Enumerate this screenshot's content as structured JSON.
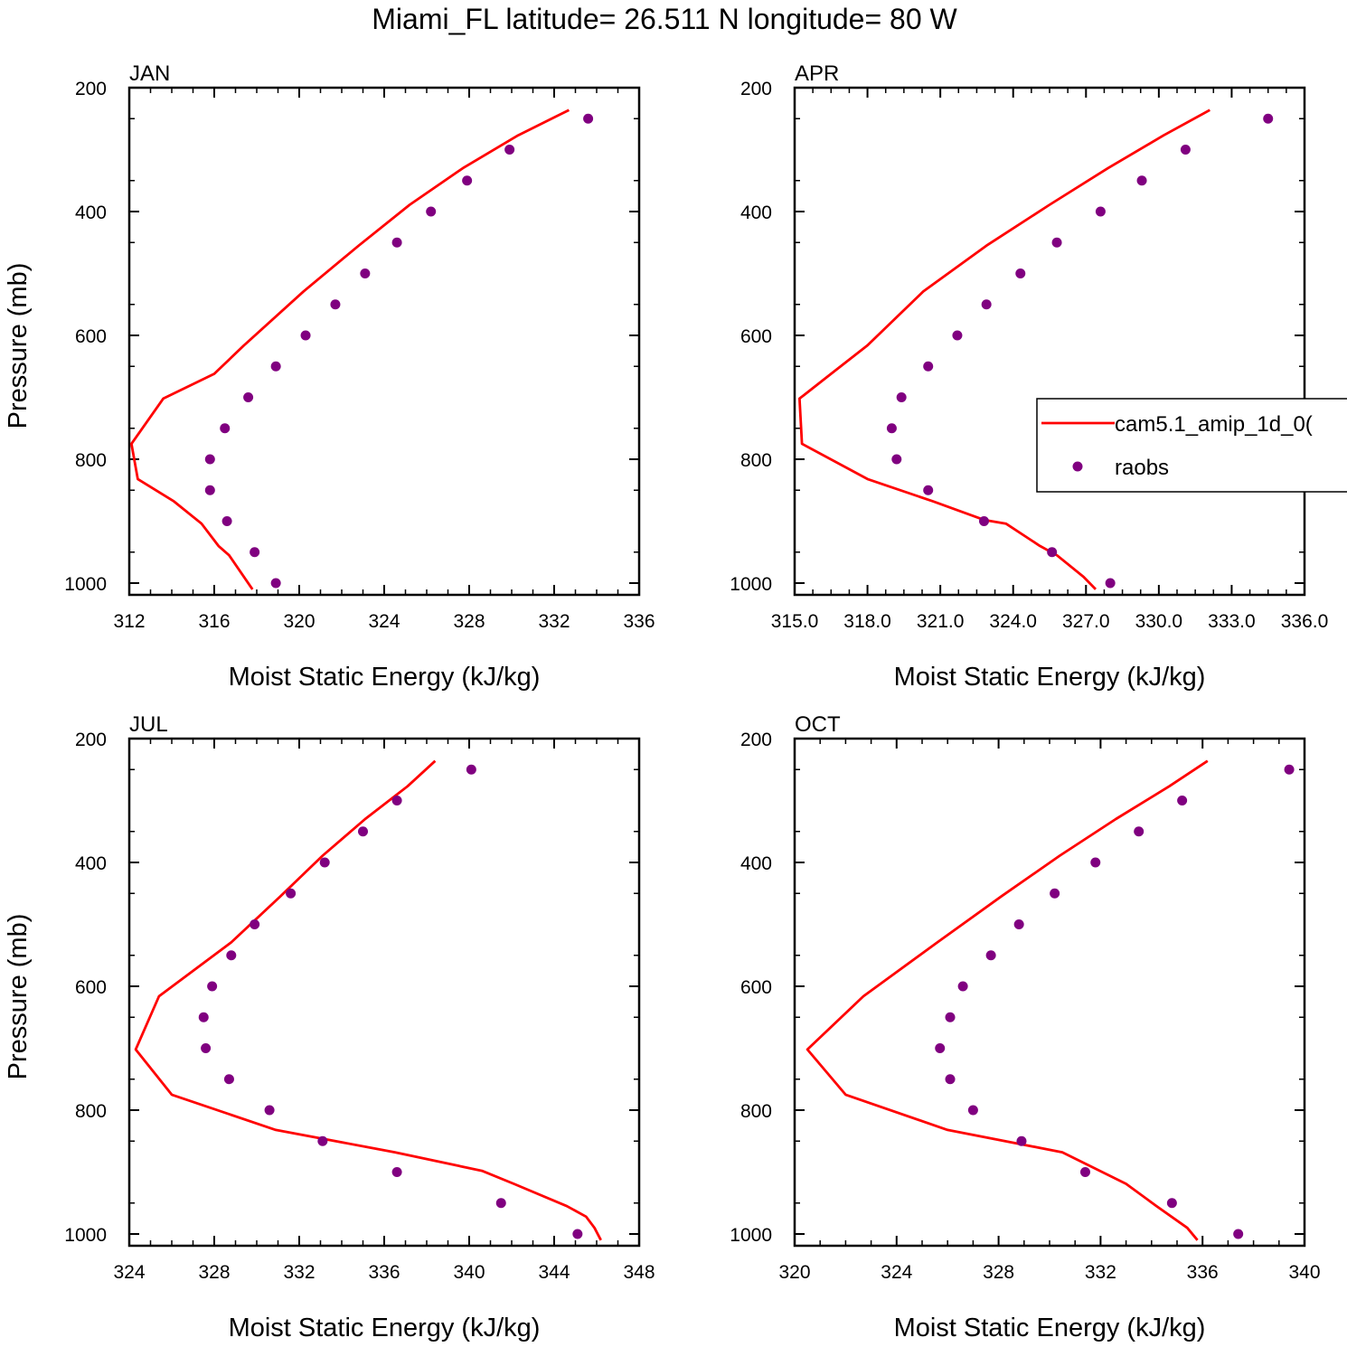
{
  "title": "Miami_FL  latitude= 26.511 N longitude= 80 W",
  "legend": {
    "model_label": "cam5.1_amip_1d_0(",
    "obs_label": "raobs",
    "model_color": "#ff0000",
    "obs_color": "#800080"
  },
  "chart_data": [
    {
      "type": "line",
      "title": "JAN",
      "xlabel": "Moist Static Energy (kJ/kg)",
      "ylabel": "Pressure (mb)",
      "xlim": [
        312,
        336
      ],
      "ylim": [
        1000,
        200
      ],
      "xticks": [
        312,
        316,
        320,
        324,
        328,
        332,
        336
      ],
      "xtick_labels": [
        "312",
        "316",
        "320",
        "324",
        "328",
        "332",
        "336"
      ],
      "yticks": [
        200,
        400,
        600,
        800,
        1000
      ],
      "ytick_labels": [
        "200",
        "400",
        "600",
        "800",
        "1000"
      ],
      "series": [
        {
          "name": "cam5.1_amip_1d_0(",
          "style": "line",
          "x": [
            332.7,
            330.3,
            327.7,
            325.2,
            322.8,
            320.2,
            317.4,
            316.0,
            313.6,
            312.1,
            312.4,
            314.1,
            315.4,
            316.2,
            316.7,
            317.8
          ],
          "y": [
            236,
            277,
            330,
            389,
            455,
            529,
            616,
            662,
            702,
            775,
            832,
            868,
            904,
            940,
            955,
            1010
          ]
        },
        {
          "name": "raobs",
          "style": "markers",
          "x": [
            333.6,
            329.9,
            327.9,
            326.2,
            324.6,
            323.1,
            321.7,
            320.3,
            318.9,
            317.6,
            316.5,
            315.8,
            315.8,
            316.6,
            317.9,
            318.9
          ],
          "y": [
            250,
            300,
            350,
            400,
            450,
            500,
            550,
            600,
            650,
            700,
            750,
            800,
            850,
            900,
            950,
            1000
          ]
        }
      ]
    },
    {
      "type": "line",
      "title": "APR",
      "xlabel": "Moist Static Energy (kJ/kg)",
      "ylabel": "",
      "xlim": [
        315,
        336
      ],
      "ylim": [
        1000,
        200
      ],
      "xticks": [
        315,
        318,
        321,
        324,
        327,
        330,
        333,
        336
      ],
      "xtick_labels": [
        "315.0",
        "318.0",
        "321.0",
        "324.0",
        "327.0",
        "330.0",
        "333.0",
        "336.0"
      ],
      "yticks": [
        200,
        400,
        600,
        800,
        1000
      ],
      "ytick_labels": [
        "200",
        "400",
        "600",
        "800",
        "1000"
      ],
      "series": [
        {
          "name": "cam5.1_amip_1d_0(",
          "style": "line",
          "x": [
            332.1,
            330.2,
            327.9,
            325.5,
            322.9,
            320.3,
            318.0,
            316.5,
            315.2,
            315.3,
            318.0,
            320.7,
            322.8,
            323.7,
            325.1,
            325.8,
            326.9,
            327.4
          ],
          "y": [
            236,
            277,
            330,
            389,
            455,
            529,
            616,
            662,
            702,
            775,
            832,
            868,
            898,
            904,
            940,
            955,
            990,
            1010
          ]
        },
        {
          "name": "raobs",
          "style": "markers",
          "x": [
            334.5,
            331.1,
            329.3,
            327.6,
            325.8,
            324.3,
            322.9,
            321.7,
            320.5,
            319.4,
            319.0,
            319.2,
            320.5,
            322.8,
            325.6,
            328.0
          ],
          "y": [
            250,
            300,
            350,
            400,
            450,
            500,
            550,
            600,
            650,
            700,
            750,
            800,
            850,
            900,
            950,
            1000
          ]
        }
      ]
    },
    {
      "type": "line",
      "title": "JUL",
      "xlabel": "Moist Static Energy (kJ/kg)",
      "ylabel": "Pressure (mb)",
      "xlim": [
        324,
        348
      ],
      "ylim": [
        1000,
        200
      ],
      "xticks": [
        324,
        328,
        332,
        336,
        340,
        344,
        348
      ],
      "xtick_labels": [
        "324",
        "328",
        "332",
        "336",
        "340",
        "344",
        "348"
      ],
      "yticks": [
        200,
        400,
        600,
        800,
        1000
      ],
      "ytick_labels": [
        "200",
        "400",
        "600",
        "800",
        "1000"
      ],
      "series": [
        {
          "name": "cam5.1_amip_1d_0(",
          "style": "line",
          "x": [
            338.4,
            337.1,
            335.1,
            333.1,
            331.1,
            328.8,
            325.4,
            324.3,
            326.0,
            330.9,
            336.5,
            340.6,
            342.1,
            344.6,
            345.5,
            345.9,
            346.2
          ],
          "y": [
            236,
            277,
            330,
            389,
            455,
            529,
            616,
            702,
            775,
            832,
            868,
            898,
            919,
            955,
            972,
            990,
            1010
          ]
        },
        {
          "name": "raobs",
          "style": "markers",
          "x": [
            340.1,
            336.6,
            335.0,
            333.2,
            331.6,
            329.9,
            328.8,
            327.9,
            327.5,
            327.6,
            328.7,
            330.6,
            333.1,
            336.6,
            341.5,
            345.1
          ],
          "y": [
            250,
            300,
            350,
            400,
            450,
            500,
            550,
            600,
            650,
            700,
            750,
            800,
            850,
            900,
            950,
            1000
          ]
        }
      ]
    },
    {
      "type": "line",
      "title": "OCT",
      "xlabel": "Moist Static Energy (kJ/kg)",
      "ylabel": "",
      "xlim": [
        320,
        340
      ],
      "ylim": [
        1000,
        200
      ],
      "xticks": [
        320,
        324,
        328,
        332,
        336,
        340
      ],
      "xtick_labels": [
        "320",
        "324",
        "328",
        "332",
        "336",
        "340"
      ],
      "yticks": [
        200,
        400,
        600,
        800,
        1000
      ],
      "ytick_labels": [
        "200",
        "400",
        "600",
        "800",
        "1000"
      ],
      "series": [
        {
          "name": "cam5.1_amip_1d_0(",
          "style": "line",
          "x": [
            336.2,
            334.7,
            332.6,
            330.4,
            328.1,
            325.6,
            322.7,
            320.5,
            322.0,
            326.0,
            330.5,
            333.0,
            334.2,
            335.4,
            335.8
          ],
          "y": [
            236,
            277,
            330,
            389,
            455,
            529,
            616,
            702,
            775,
            832,
            868,
            919,
            955,
            990,
            1010
          ]
        },
        {
          "name": "raobs",
          "style": "markers",
          "x": [
            339.4,
            335.2,
            333.5,
            331.8,
            330.2,
            328.8,
            327.7,
            326.6,
            326.1,
            325.7,
            326.1,
            327.0,
            328.9,
            331.4,
            334.8,
            337.4
          ],
          "y": [
            250,
            300,
            350,
            400,
            450,
            500,
            550,
            600,
            650,
            700,
            750,
            800,
            850,
            900,
            950,
            1000
          ]
        }
      ]
    }
  ]
}
